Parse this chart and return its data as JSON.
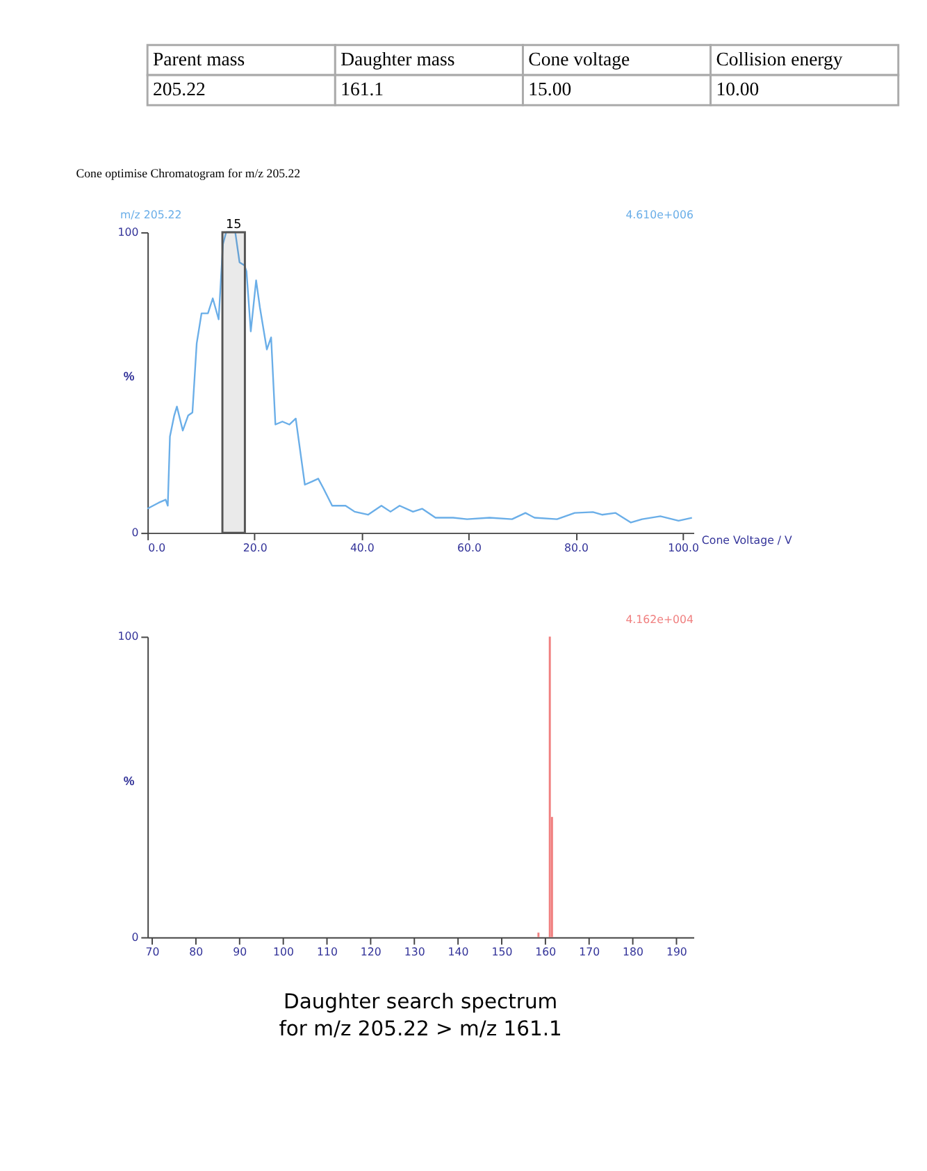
{
  "chart_data": [
    {
      "type": "other",
      "annotations": [
        "Parent mass",
        "Daughter mass",
        "Cone voltage",
        "Collision energy",
        "205.22",
        "161.1",
        "15.00",
        "10.00"
      ]
    },
    {
      "type": "line",
      "title": "Cone optimise Chromatogram for m/z 205.22",
      "xlabel": "Cone Voltage / V",
      "ylabel": "%",
      "x": [
        0,
        2.1,
        3.4,
        3.8,
        4.2,
        5,
        5.5,
        6.6,
        7.6,
        8.4,
        9.2,
        10.1,
        11.3,
        12.2,
        13.3,
        14.1,
        14.7,
        16.4,
        17.2,
        18.1,
        18.5,
        19.3,
        20.3,
        21,
        22.3,
        23.1,
        23.9,
        25.2,
        26.5,
        27.7,
        29.4,
        30.7,
        31.9,
        32.8,
        34.5,
        37,
        38.7,
        41.2,
        43.7,
        45.4,
        47.1,
        49.6,
        51.3,
        53.8,
        57.1,
        59.7,
        63.9,
        68.1,
        70.6,
        72.3,
        76.5,
        79.8,
        83.2,
        84.9,
        87.4,
        90.3,
        92.4,
        95.8,
        99.2,
        101.7
      ],
      "series": [
        {
          "name": "m/z 205.22",
          "color": "#6aaee8",
          "values": [
            8,
            10,
            11,
            9,
            32,
            39,
            42,
            34,
            39,
            40,
            63,
            73,
            73,
            78,
            71,
            96,
            100,
            100,
            90,
            89,
            87,
            67,
            84,
            75,
            61,
            65,
            36,
            37,
            36,
            38,
            16,
            17,
            18,
            15,
            9,
            9,
            7,
            6,
            9,
            7,
            9,
            7,
            8,
            5,
            5,
            4.5,
            5,
            4.5,
            6.6,
            5,
            4.5,
            6.6,
            6.9,
            6,
            6.6,
            3.4,
            4.5,
            5.5,
            4,
            5
          ]
        }
      ],
      "xlim": [
        0,
        102
      ],
      "ylim": [
        0,
        100
      ],
      "xticks": [
        {
          "value": 0,
          "label": "0.0"
        },
        {
          "value": 20,
          "label": "20.0"
        },
        {
          "value": 40,
          "label": "40.0"
        },
        {
          "value": 60,
          "label": "60.0"
        },
        {
          "value": 80,
          "label": "80.0"
        },
        {
          "value": 100,
          "label": "100.0"
        }
      ],
      "yticks": [
        0,
        100
      ],
      "bands": [
        {
          "axis": "x",
          "from": 14,
          "to": 18.2,
          "label": "15",
          "color": "#555555"
        }
      ],
      "annotations": [
        "4.610e+006"
      ]
    },
    {
      "type": "bar",
      "ylabel": "%",
      "x": [
        158.5,
        161.1,
        161.6
      ],
      "series": [
        {
          "color": "#f08080",
          "values": [
            1.5,
            100,
            40
          ]
        }
      ],
      "xlim": [
        69,
        194
      ],
      "ylim": [
        0,
        100
      ],
      "xticks": [
        70,
        80,
        90,
        100,
        110,
        120,
        130,
        140,
        150,
        160,
        170,
        180,
        190
      ],
      "yticks": [
        0,
        100
      ],
      "annotations": [
        "4.162e+004",
        "Daughter search spectrum\nfor m/z 205.22 > m/z 161.1"
      ]
    }
  ]
}
